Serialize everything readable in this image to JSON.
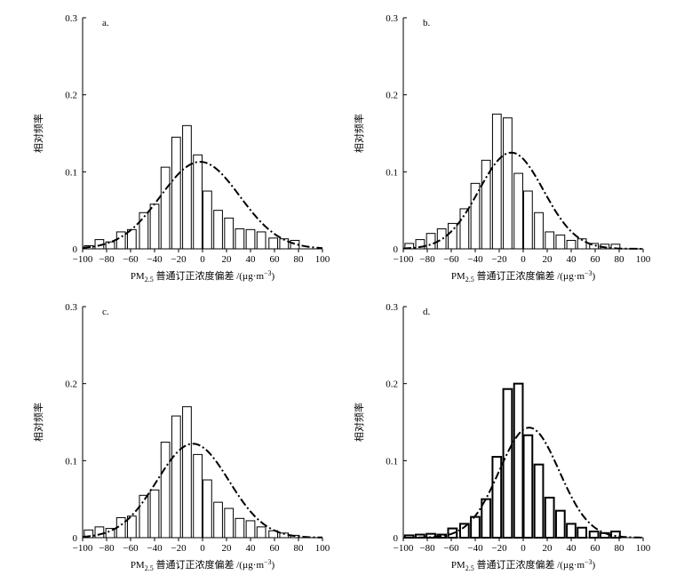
{
  "chart_data": [
    {
      "type": "bar",
      "panel_label": "a.",
      "ylabel": "相对频率",
      "xlabel": {
        "prefix": "PM",
        "subscript": "2.5",
        "suffix": " 普通订正浓度偏差 /(µg·m",
        "sup": "−3",
        "close": ")"
      },
      "xlim": [
        -100,
        100
      ],
      "ylim": [
        0,
        0.3
      ],
      "xticks": [
        "−100",
        "−80",
        "−60",
        "−40",
        "−20",
        "0",
        "20",
        "40",
        "60",
        "80",
        "100"
      ],
      "yticks": [
        "0",
        "0.1",
        "0.2",
        "0.3"
      ],
      "bin_width": 8.7,
      "bins": [
        -95,
        -86,
        -77,
        -68,
        -59,
        -49,
        -40,
        -31,
        -22,
        -13,
        -4,
        4,
        13,
        22,
        31,
        40,
        49,
        59,
        68,
        77,
        86,
        95
      ],
      "values": [
        0.004,
        0.012,
        0.009,
        0.022,
        0.025,
        0.047,
        0.058,
        0.106,
        0.145,
        0.16,
        0.122,
        0.075,
        0.05,
        0.04,
        0.026,
        0.025,
        0.022,
        0.014,
        0.013,
        0.011,
        0.0,
        0.0
      ],
      "fit": {
        "mean": -2,
        "sd": 33,
        "peak": 0.113
      },
      "bar_stroke": 1
    },
    {
      "type": "bar",
      "panel_label": "b.",
      "ylabel": "相对频率",
      "xlabel": {
        "prefix": "PM",
        "subscript": "2.5",
        "suffix": " 普通订正浓度偏差 /(µg·m",
        "sup": "−3",
        "close": ")"
      },
      "xlim": [
        -100,
        100
      ],
      "ylim": [
        0,
        0.3
      ],
      "xticks": [
        "−100",
        "−80",
        "−60",
        "−40",
        "−20",
        "0",
        "20",
        "40",
        "60",
        "80",
        "100"
      ],
      "yticks": [
        "0",
        "0.1",
        "0.2",
        "0.3"
      ],
      "bin_width": 8.7,
      "bins": [
        -95,
        -86,
        -77,
        -68,
        -59,
        -49,
        -40,
        -31,
        -22,
        -13,
        -4,
        4,
        13,
        22,
        31,
        40,
        49,
        59,
        68,
        77,
        86,
        95
      ],
      "values": [
        0.007,
        0.012,
        0.02,
        0.026,
        0.033,
        0.052,
        0.085,
        0.115,
        0.175,
        0.17,
        0.098,
        0.075,
        0.047,
        0.022,
        0.018,
        0.011,
        0.013,
        0.007,
        0.006,
        0.006,
        0.0,
        0.0
      ],
      "fit": {
        "mean": -10,
        "sd": 27,
        "peak": 0.125
      },
      "bar_stroke": 1
    },
    {
      "type": "bar",
      "panel_label": "c.",
      "ylabel": "相对频率",
      "xlabel": {
        "prefix": "PM",
        "subscript": "2.5",
        "suffix": " 普通订正浓度偏差 /(µg·m",
        "sup": "−3",
        "close": ")"
      },
      "xlim": [
        -100,
        100
      ],
      "ylim": [
        0,
        0.3
      ],
      "xticks": [
        "−100",
        "−80",
        "−60",
        "−40",
        "−20",
        "0",
        "20",
        "40",
        "60",
        "80",
        "100"
      ],
      "yticks": [
        "0",
        "0.1",
        "0.2",
        "0.3"
      ],
      "bin_width": 8.7,
      "bins": [
        -95,
        -86,
        -77,
        -68,
        -59,
        -49,
        -40,
        -31,
        -22,
        -13,
        -4,
        4,
        13,
        22,
        31,
        40,
        49,
        59,
        68,
        77,
        86,
        95
      ],
      "values": [
        0.01,
        0.014,
        0.012,
        0.026,
        0.028,
        0.055,
        0.062,
        0.124,
        0.158,
        0.17,
        0.108,
        0.075,
        0.046,
        0.038,
        0.025,
        0.022,
        0.014,
        0.009,
        0.006,
        0.003,
        0.0,
        0.0
      ],
      "fit": {
        "mean": -8,
        "sd": 30,
        "peak": 0.122
      },
      "bar_stroke": 1
    },
    {
      "type": "bar",
      "panel_label": "d.",
      "ylabel": "相对频率",
      "xlabel": {
        "prefix": "PM",
        "subscript": "2.5",
        "suffix": " 普通订正浓度偏差 /(µg·m",
        "sup": "−3",
        "close": ")"
      },
      "xlim": [
        -100,
        100
      ],
      "ylim": [
        0,
        0.3
      ],
      "xticks": [
        "−100",
        "−80",
        "−60",
        "−40",
        "−20",
        "0",
        "20",
        "40",
        "60",
        "80",
        "100"
      ],
      "yticks": [
        "0",
        "0.1",
        "0.2",
        "0.3"
      ],
      "bin_width": 8.7,
      "bins": [
        -95,
        -86,
        -77,
        -68,
        -59,
        -49,
        -40,
        -31,
        -22,
        -13,
        -4,
        4,
        13,
        22,
        31,
        40,
        49,
        59,
        68,
        77,
        86,
        95
      ],
      "values": [
        0.003,
        0.004,
        0.005,
        0.004,
        0.012,
        0.018,
        0.027,
        0.05,
        0.105,
        0.193,
        0.2,
        0.133,
        0.095,
        0.052,
        0.035,
        0.018,
        0.013,
        0.008,
        0.006,
        0.008,
        0.0,
        0.0
      ],
      "fit": {
        "mean": 5,
        "sd": 25,
        "peak": 0.143
      },
      "bar_stroke": 2
    }
  ]
}
